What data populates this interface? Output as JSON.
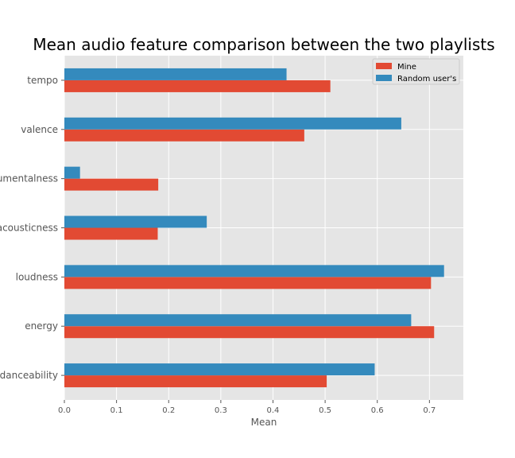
{
  "chart_data": {
    "type": "bar",
    "orientation": "horizontal",
    "title": "Mean audio feature comparison between the two playlists",
    "xlabel": "Mean",
    "ylabel": "",
    "xlim": [
      0,
      0.765
    ],
    "xticks": [
      "0.0",
      "0.1",
      "0.2",
      "0.3",
      "0.4",
      "0.5",
      "0.6",
      "0.7"
    ],
    "categories": [
      "danceability",
      "energy",
      "loudness",
      "acousticness",
      "instrumentalness",
      "valence",
      "tempo"
    ],
    "series": [
      {
        "name": "Mine",
        "color": "#e24a33",
        "values": [
          0.503,
          0.709,
          0.703,
          0.179,
          0.18,
          0.46,
          0.51
        ]
      },
      {
        "name": "Random user's",
        "color": "#348abd",
        "values": [
          0.595,
          0.665,
          0.728,
          0.273,
          0.03,
          0.646,
          0.426
        ]
      }
    ],
    "grid": true,
    "background": "#e5e5e5",
    "legend_position": "upper right"
  }
}
